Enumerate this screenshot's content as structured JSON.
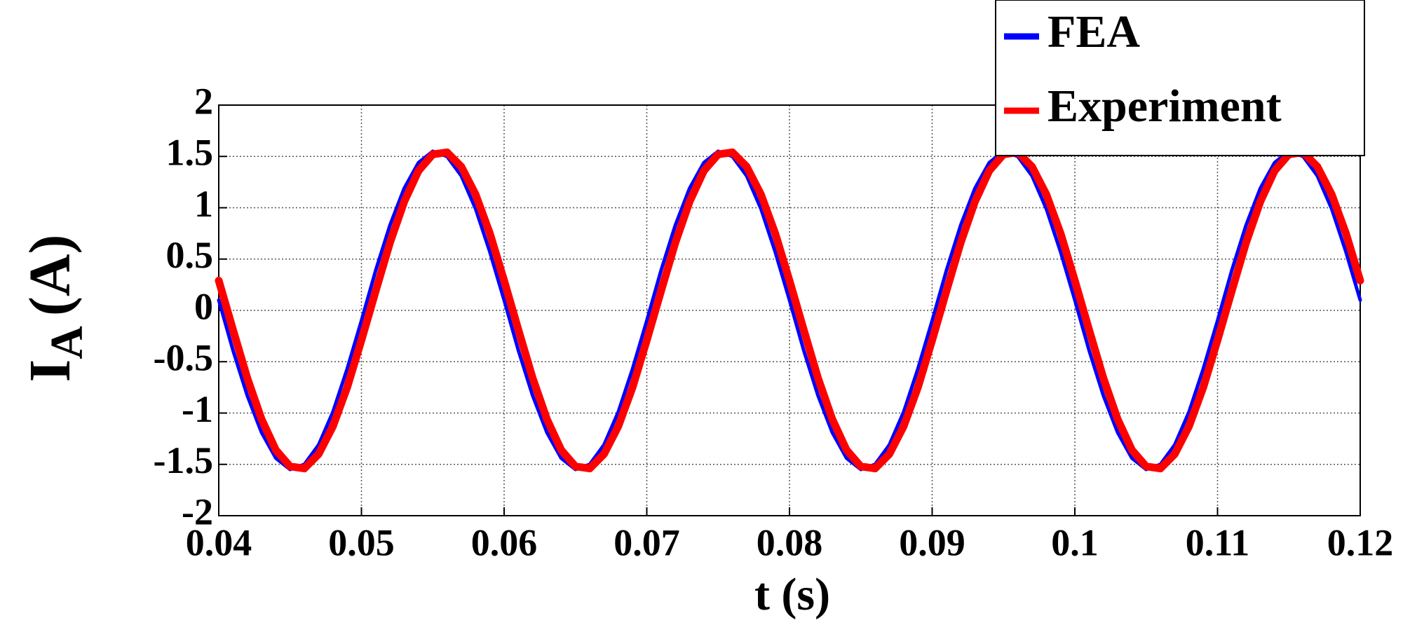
{
  "chart_data": {
    "type": "line",
    "ylabel": "I",
    "ylabel_sub": "A",
    "ylabel_unit": "(A)",
    "xlabel": "t (s)",
    "x": [
      0.04,
      0.041,
      0.042,
      0.043,
      0.044,
      0.045,
      0.046,
      0.047,
      0.048,
      0.049,
      0.05,
      0.051,
      0.052,
      0.053,
      0.054,
      0.055,
      0.056,
      0.057,
      0.058,
      0.059,
      0.06,
      0.061,
      0.062,
      0.063,
      0.064,
      0.065,
      0.066,
      0.067,
      0.068,
      0.069,
      0.07,
      0.071,
      0.072,
      0.073,
      0.074,
      0.075,
      0.076,
      0.077,
      0.078,
      0.079,
      0.08,
      0.081,
      0.082,
      0.083,
      0.084,
      0.085,
      0.086,
      0.087,
      0.088,
      0.089,
      0.09,
      0.091,
      0.092,
      0.093,
      0.094,
      0.095,
      0.096,
      0.097,
      0.098,
      0.099,
      0.1,
      0.101,
      0.102,
      0.103,
      0.104,
      0.105,
      0.106,
      0.107,
      0.108,
      0.109,
      0.11,
      0.111,
      0.112,
      0.113,
      0.114,
      0.115,
      0.116,
      0.117,
      0.118,
      0.119,
      0.12
    ],
    "series": [
      {
        "name": "FEA",
        "color": "#0000ff",
        "width": 5,
        "values": [
          0.1,
          -0.39,
          -0.83,
          -1.19,
          -1.44,
          -1.55,
          -1.5,
          -1.31,
          -0.99,
          -0.57,
          -0.1,
          0.39,
          0.83,
          1.19,
          1.44,
          1.55,
          1.5,
          1.31,
          0.99,
          0.57,
          0.1,
          -0.39,
          -0.83,
          -1.19,
          -1.44,
          -1.55,
          -1.5,
          -1.31,
          -0.99,
          -0.57,
          -0.1,
          0.39,
          0.83,
          1.19,
          1.44,
          1.55,
          1.5,
          1.31,
          0.99,
          0.57,
          0.1,
          -0.39,
          -0.83,
          -1.19,
          -1.44,
          -1.55,
          -1.5,
          -1.31,
          -0.99,
          -0.57,
          -0.1,
          0.39,
          0.83,
          1.19,
          1.44,
          1.55,
          1.5,
          1.31,
          0.99,
          0.57,
          0.1,
          -0.39,
          -0.83,
          -1.19,
          -1.44,
          -1.55,
          -1.5,
          -1.31,
          -0.99,
          -0.57,
          -0.1,
          0.39,
          0.83,
          1.19,
          1.44,
          1.55,
          1.5,
          1.31,
          0.99,
          0.57,
          0.1
        ]
      },
      {
        "name": "Experiment",
        "color": "#ff0000",
        "width": 11,
        "values": [
          0.29,
          -0.19,
          -0.66,
          -1.06,
          -1.36,
          -1.52,
          -1.54,
          -1.4,
          -1.13,
          -0.75,
          -0.29,
          0.19,
          0.66,
          1.06,
          1.36,
          1.52,
          1.54,
          1.4,
          1.13,
          0.75,
          0.29,
          -0.19,
          -0.66,
          -1.06,
          -1.36,
          -1.52,
          -1.54,
          -1.4,
          -1.13,
          -0.75,
          -0.29,
          0.19,
          0.66,
          1.06,
          1.36,
          1.52,
          1.54,
          1.4,
          1.13,
          0.75,
          0.29,
          -0.19,
          -0.66,
          -1.06,
          -1.36,
          -1.52,
          -1.54,
          -1.4,
          -1.13,
          -0.75,
          -0.29,
          0.19,
          0.66,
          1.06,
          1.36,
          1.52,
          1.54,
          1.4,
          1.13,
          0.75,
          0.29,
          -0.19,
          -0.66,
          -1.06,
          -1.36,
          -1.52,
          -1.54,
          -1.4,
          -1.13,
          -0.75,
          -0.29,
          0.19,
          0.66,
          1.06,
          1.36,
          1.52,
          1.54,
          1.4,
          1.13,
          0.75,
          0.29
        ]
      }
    ],
    "xlim": [
      0.04,
      0.12
    ],
    "xticks": [
      0.04,
      0.05,
      0.06,
      0.07,
      0.08,
      0.09,
      0.1,
      0.11,
      0.12
    ],
    "ylim": [
      -2,
      2
    ],
    "yticks": [
      -2,
      -1.5,
      -1,
      -0.5,
      0,
      0.5,
      1,
      1.5,
      2
    ],
    "grid": true,
    "legend": "upper right"
  }
}
